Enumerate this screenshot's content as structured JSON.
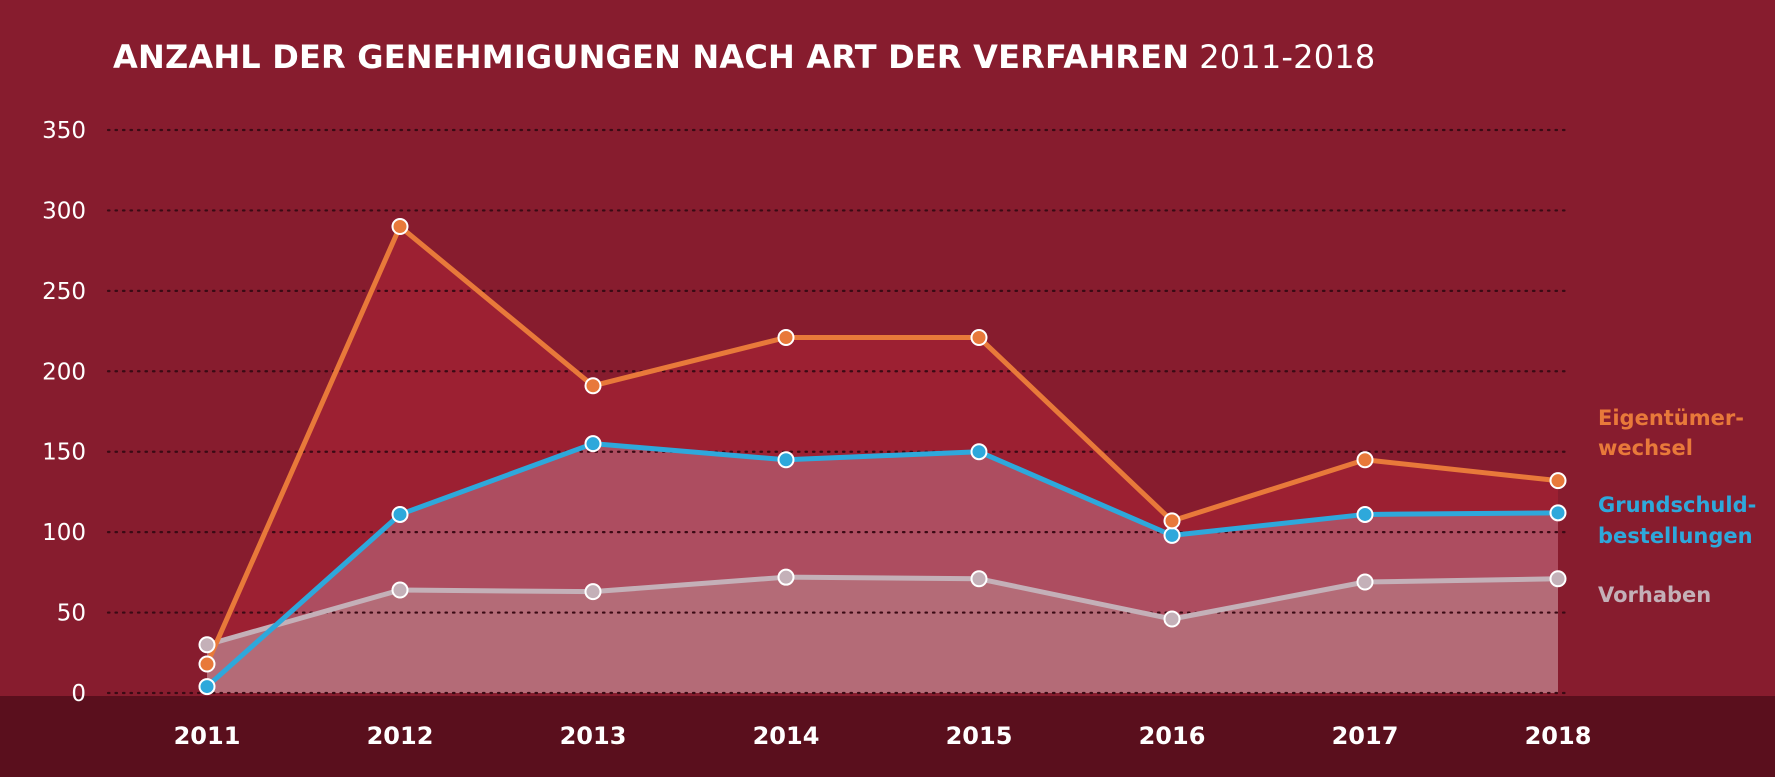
{
  "chart_data": {
    "type": "line",
    "title": "ANZAHL DER GENEHMIGUNGEN NACH ART DER VERFAHREN",
    "title_years": "2011-2018",
    "xlabel": "",
    "ylabel": "",
    "x": [
      "2011",
      "2012",
      "2013",
      "2014",
      "2015",
      "2016",
      "2017",
      "2018"
    ],
    "ylim": [
      0,
      350
    ],
    "yticks": [
      "0",
      "50",
      "100",
      "150",
      "200",
      "250",
      "300",
      "350"
    ],
    "grid": "dotted horizontal",
    "legend_position": "right",
    "series": [
      {
        "name": "Eigentümerwechsel",
        "label_lines": [
          "Eigentümer-",
          "wechsel"
        ],
        "color": "#e8793a",
        "values": [
          18,
          290,
          191,
          221,
          221,
          107,
          145,
          132
        ]
      },
      {
        "name": "Grundschuldbestellungen",
        "label_lines": [
          "Grundschuld-",
          "bestellungen"
        ],
        "color": "#2ea8db",
        "values": [
          4,
          111,
          155,
          145,
          150,
          98,
          111,
          112
        ]
      },
      {
        "name": "Vorhaben",
        "label_lines": [
          "Vorhaben"
        ],
        "color": "#c4b0b8",
        "values": [
          30,
          64,
          63,
          72,
          71,
          46,
          69,
          71
        ]
      }
    ]
  },
  "colors": {
    "background": "#871c2e",
    "baseband": "#5a0f1d",
    "fill_top": "#9c2032",
    "fill_middle": "#ad4d60",
    "fill_bottom": "#b46b77",
    "grid": "#3a0a14"
  }
}
